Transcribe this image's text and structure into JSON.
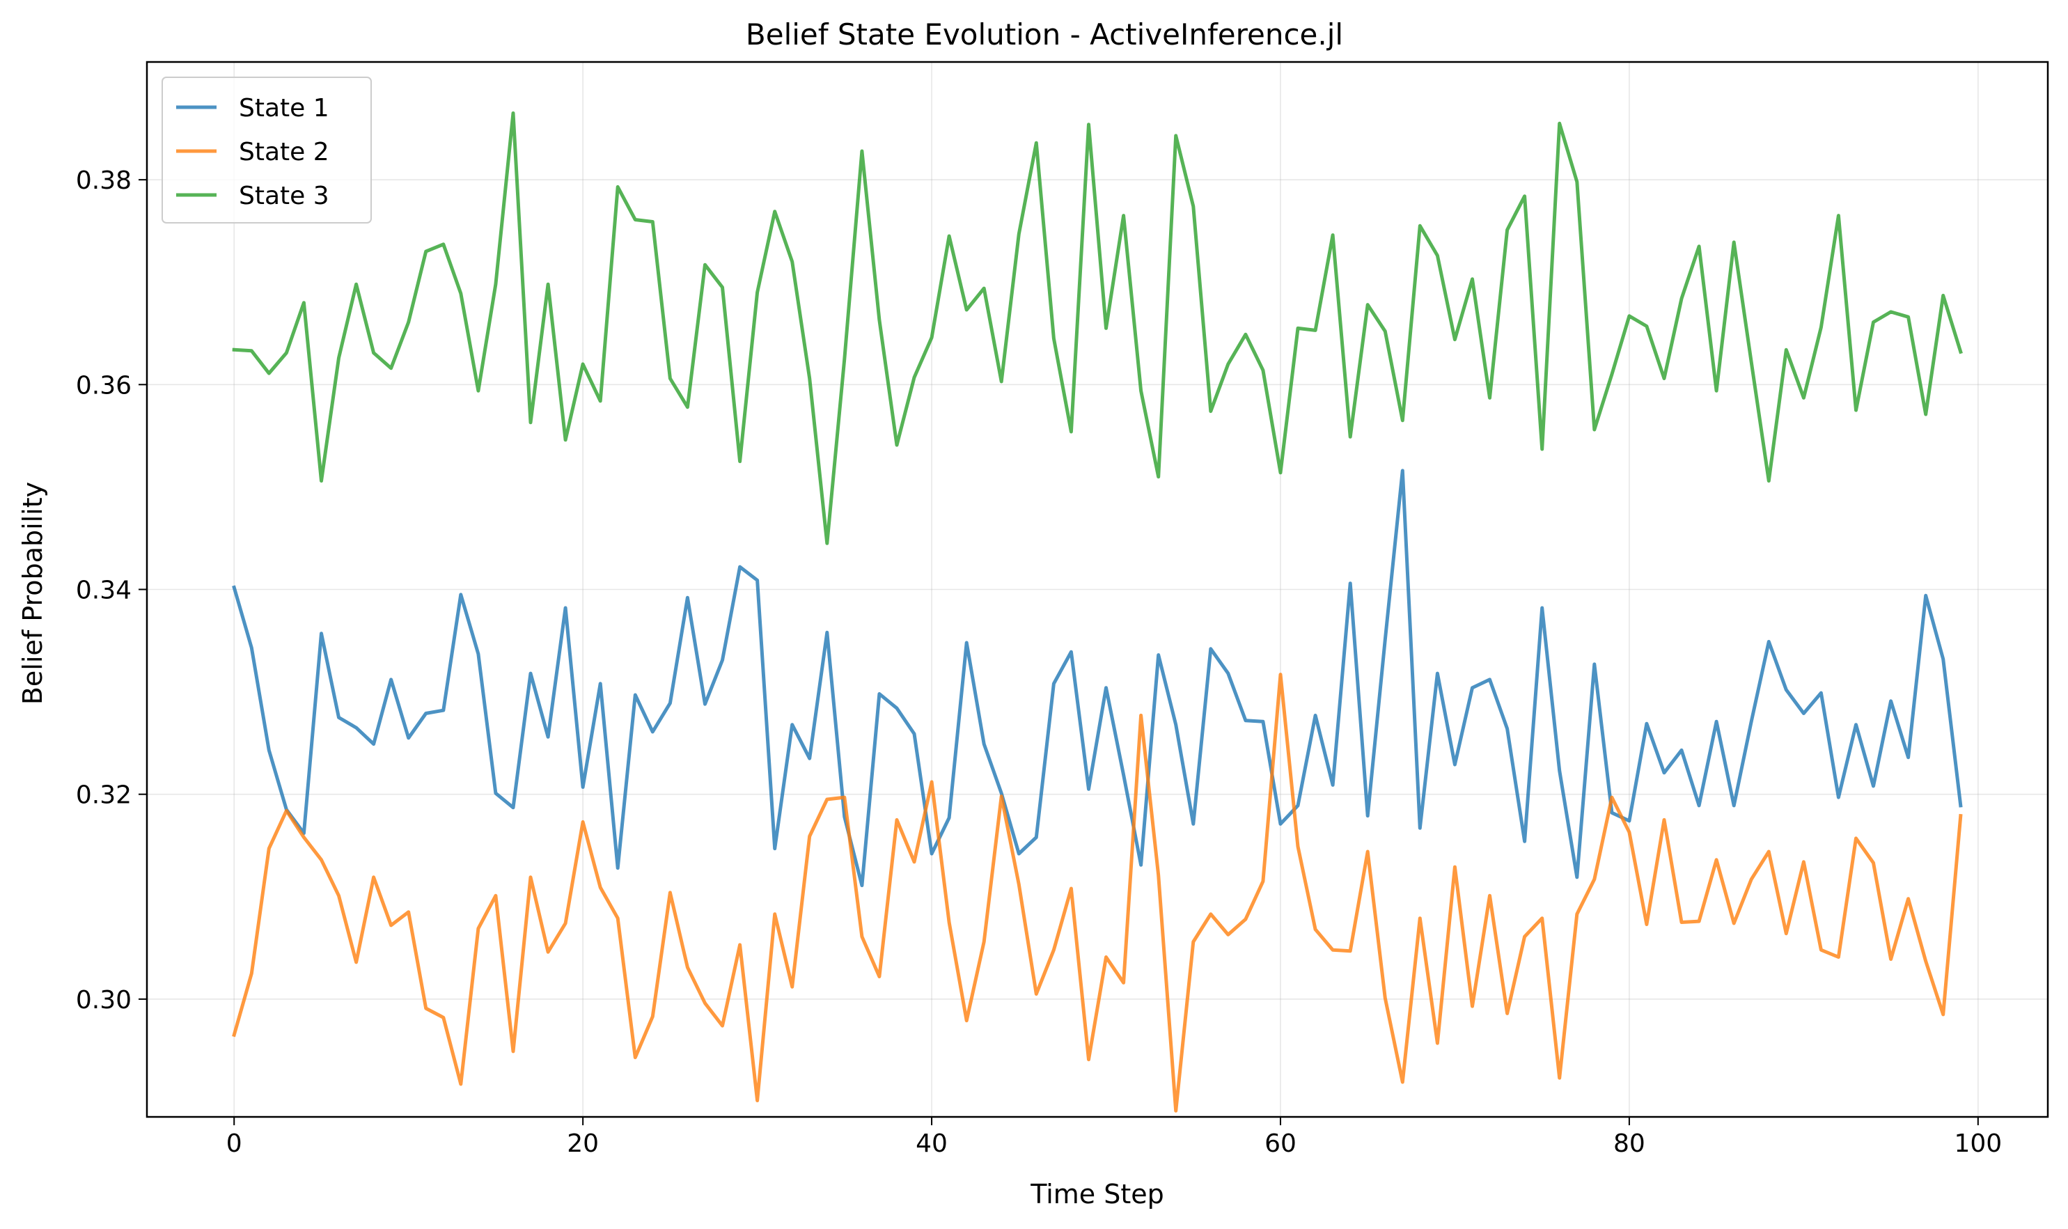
{
  "chart_data": {
    "type": "line",
    "title": "Belief State Evolution - ActiveInference.jl",
    "xlabel": "Time Step",
    "ylabel": "Belief Probability",
    "xlim": [
      -5,
      104
    ],
    "ylim": [
      0.2885,
      0.3915
    ],
    "xticks": [
      0,
      20,
      40,
      60,
      80,
      100
    ],
    "yticks": [
      0.3,
      0.32,
      0.34,
      0.36,
      0.38
    ],
    "xtick_labels": [
      "0",
      "20",
      "40",
      "60",
      "80",
      "100"
    ],
    "ytick_labels": [
      "0.30",
      "0.32",
      "0.34",
      "0.36",
      "0.38"
    ],
    "grid": true,
    "legend_position": "top-left",
    "x": [
      0,
      1,
      2,
      3,
      4,
      5,
      6,
      7,
      8,
      9,
      10,
      11,
      12,
      13,
      14,
      15,
      16,
      17,
      18,
      19,
      20,
      21,
      22,
      23,
      24,
      25,
      26,
      27,
      28,
      29,
      30,
      31,
      32,
      33,
      34,
      35,
      36,
      37,
      38,
      39,
      40,
      41,
      42,
      43,
      44,
      45,
      46,
      47,
      48,
      49,
      50,
      51,
      52,
      53,
      54,
      55,
      56,
      57,
      58,
      59,
      60,
      61,
      62,
      63,
      64,
      65,
      66,
      67,
      68,
      69,
      70,
      71,
      72,
      73,
      74,
      75,
      76,
      77,
      78,
      79,
      80,
      81,
      82,
      83,
      84,
      85,
      86,
      87,
      88,
      89,
      90,
      91,
      92,
      93,
      94,
      95,
      96,
      97,
      98,
      99
    ],
    "series": [
      {
        "name": "State 1",
        "color": "#1f77b4",
        "values": [
          0.3402,
          0.3343,
          0.3243,
          0.3185,
          0.3162,
          0.3357,
          0.3275,
          0.3265,
          0.3249,
          0.3312,
          0.3255,
          0.3279,
          0.3282,
          0.3395,
          0.3337,
          0.3201,
          0.3187,
          0.3318,
          0.3256,
          0.3382,
          0.3207,
          0.3308,
          0.3128,
          0.3297,
          0.3261,
          0.3289,
          0.3392,
          0.3288,
          0.3331,
          0.3422,
          0.3409,
          0.3147,
          0.3268,
          0.3235,
          0.3358,
          0.3178,
          0.3111,
          0.3298,
          0.3284,
          0.3259,
          0.3142,
          0.3177,
          0.3348,
          0.3249,
          0.3201,
          0.3142,
          0.3158,
          0.3308,
          0.3339,
          0.3205,
          0.3304,
          0.3219,
          0.3131,
          0.3336,
          0.3268,
          0.3171,
          0.3342,
          0.3318,
          0.3272,
          0.3271,
          0.3171,
          0.3189,
          0.3277,
          0.3209,
          0.3406,
          0.3179,
          0.3351,
          0.3516,
          0.3167,
          0.3318,
          0.3229,
          0.3304,
          0.3312,
          0.3264,
          0.3154,
          0.3382,
          0.3223,
          0.3119,
          0.3327,
          0.3182,
          0.3174,
          0.3269,
          0.3221,
          0.3243,
          0.3189,
          0.3271,
          0.3189,
          0.3271,
          0.3349,
          0.3302,
          0.3279,
          0.3299,
          0.3197,
          0.3268,
          0.3208,
          0.3291,
          0.3236,
          0.3394,
          0.3332,
          0.3189
        ]
      },
      {
        "name": "State 2",
        "color": "#ff7f0e",
        "values": [
          0.2965,
          0.3025,
          0.3147,
          0.3184,
          0.3158,
          0.3136,
          0.3101,
          0.3036,
          0.3119,
          0.3072,
          0.3085,
          0.2991,
          0.2982,
          0.2917,
          0.3069,
          0.3101,
          0.2949,
          0.3119,
          0.3046,
          0.3074,
          0.3173,
          0.3109,
          0.3079,
          0.2943,
          0.2983,
          0.3104,
          0.3031,
          0.2996,
          0.2974,
          0.3053,
          0.2901,
          0.3083,
          0.3012,
          0.3159,
          0.3195,
          0.3197,
          0.3061,
          0.3022,
          0.3175,
          0.3134,
          0.3212,
          0.3075,
          0.2979,
          0.3056,
          0.3198,
          0.3112,
          0.3005,
          0.3048,
          0.3108,
          0.2941,
          0.3041,
          0.3016,
          0.3277,
          0.3121,
          0.2891,
          0.3056,
          0.3083,
          0.3063,
          0.3078,
          0.3115,
          0.3317,
          0.3149,
          0.3068,
          0.3048,
          0.3047,
          0.3144,
          0.3001,
          0.2919,
          0.3079,
          0.2957,
          0.3129,
          0.2993,
          0.3101,
          0.2986,
          0.3061,
          0.3079,
          0.2923,
          0.3083,
          0.3117,
          0.3197,
          0.3163,
          0.3073,
          0.3175,
          0.3075,
          0.3076,
          0.3136,
          0.3074,
          0.3117,
          0.3144,
          0.3064,
          0.3134,
          0.3048,
          0.3041,
          0.3157,
          0.3133,
          0.3039,
          0.3098,
          0.3037,
          0.2985,
          0.3179
        ]
      },
      {
        "name": "State 3",
        "color": "#2ca02c",
        "values": [
          0.3634,
          0.3633,
          0.3611,
          0.3631,
          0.368,
          0.3506,
          0.3626,
          0.3698,
          0.3631,
          0.3616,
          0.3661,
          0.373,
          0.3737,
          0.3689,
          0.3594,
          0.3698,
          0.3865,
          0.3563,
          0.3698,
          0.3546,
          0.362,
          0.3584,
          0.3793,
          0.3761,
          0.3759,
          0.3606,
          0.3578,
          0.3717,
          0.3695,
          0.3525,
          0.369,
          0.3769,
          0.372,
          0.3606,
          0.3445,
          0.3625,
          0.3828,
          0.3663,
          0.3541,
          0.3607,
          0.3646,
          0.3745,
          0.3673,
          0.3694,
          0.3603,
          0.3747,
          0.3836,
          0.3645,
          0.3554,
          0.3854,
          0.3655,
          0.3765,
          0.3594,
          0.351,
          0.3843,
          0.3774,
          0.3574,
          0.362,
          0.3649,
          0.3614,
          0.3514,
          0.3655,
          0.3653,
          0.3746,
          0.3549,
          0.3678,
          0.3652,
          0.3565,
          0.3755,
          0.3726,
          0.3644,
          0.3703,
          0.3587,
          0.3751,
          0.3784,
          0.3537,
          0.3855,
          0.3798,
          0.3556,
          0.361,
          0.3667,
          0.3657,
          0.3606,
          0.3684,
          0.3735,
          0.3594,
          0.3739,
          0.3622,
          0.3506,
          0.3634,
          0.3587,
          0.3656,
          0.3765,
          0.3575,
          0.3661,
          0.3671,
          0.3666,
          0.3571,
          0.3687,
          0.3632
        ]
      }
    ]
  }
}
